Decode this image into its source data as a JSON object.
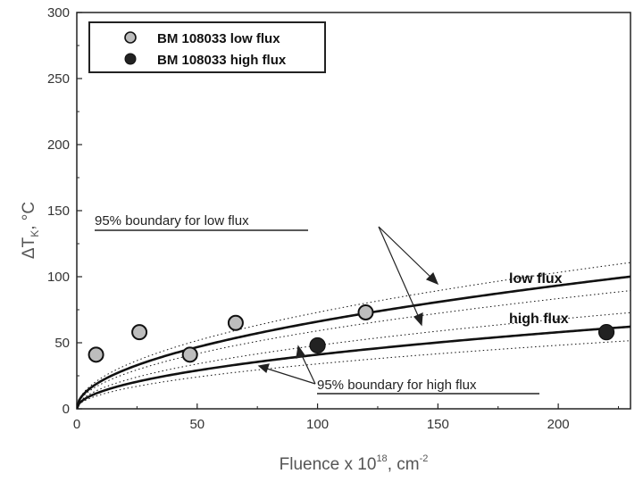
{
  "chart_data": {
    "type": "scatter",
    "xlabel": "Fluence x 10",
    "xlabel_exp": "18",
    "xlabel_unit": ", cm",
    "xlabel_unit_exp": "-2",
    "ylabel": "ΔT",
    "ylabel_sub": "K",
    "ylabel_unit": ", °C",
    "xlim": [
      0,
      230
    ],
    "ylim": [
      0,
      300
    ],
    "x_ticks": [
      0,
      50,
      100,
      150,
      200
    ],
    "y_ticks": [
      0,
      50,
      100,
      150,
      200,
      250,
      300
    ],
    "legend_position": "top-left",
    "series": [
      {
        "name": "BM 108033 low flux",
        "marker": "light-gray-circle",
        "color": "#bdbdbd",
        "points": [
          {
            "x": 8,
            "y": 41
          },
          {
            "x": 26,
            "y": 58
          },
          {
            "x": 47,
            "y": 41
          },
          {
            "x": 66,
            "y": 65
          },
          {
            "x": 120,
            "y": 73
          }
        ]
      },
      {
        "name": "BM 108033 high flux",
        "marker": "black-circle",
        "color": "#222222",
        "points": [
          {
            "x": 100,
            "y": 48
          },
          {
            "x": 220,
            "y": 58
          }
        ]
      }
    ],
    "fit_curves": [
      {
        "label": "low flux",
        "coef": 6.6,
        "exponent": 0.5,
        "style": "solid"
      },
      {
        "label": "high flux",
        "coef": 4.1,
        "exponent": 0.5,
        "style": "solid"
      },
      {
        "style": "dotted",
        "coef": 7.3,
        "exponent": 0.5
      },
      {
        "style": "dotted",
        "coef": 5.9,
        "exponent": 0.5
      },
      {
        "style": "dotted",
        "coef": 4.8,
        "exponent": 0.5
      },
      {
        "style": "dotted",
        "coef": 3.4,
        "exponent": 0.5
      }
    ],
    "annotations": {
      "low_boundary": "95% boundary for low flux",
      "high_boundary": "95% boundary for high flux",
      "low_curve_label": "low flux",
      "high_curve_label": "high flux"
    }
  }
}
